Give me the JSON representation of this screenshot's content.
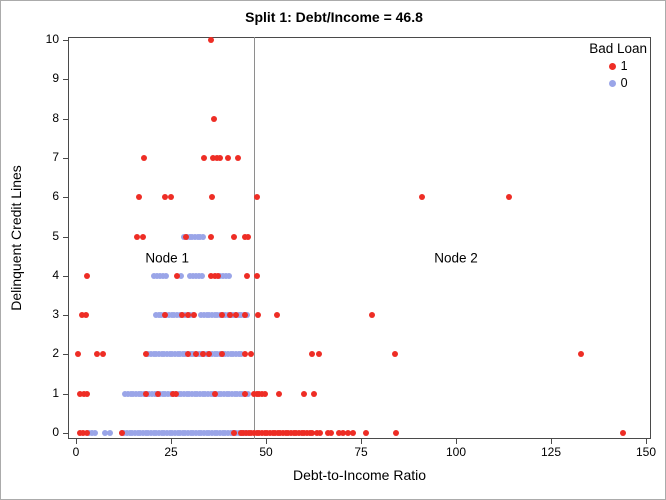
{
  "title": "Split 1: Debt/Income = 46.8",
  "axes": {
    "x": {
      "label": "Debt-to-Income Ratio",
      "min": 0,
      "max": 150,
      "ticks": [
        0,
        25,
        50,
        75,
        100,
        125,
        150
      ]
    },
    "y": {
      "label": "Delinquent Credit Lines",
      "min": 0,
      "max": 10,
      "ticks": [
        0,
        1,
        2,
        3,
        4,
        5,
        6,
        7,
        8,
        9,
        10
      ]
    }
  },
  "legend": {
    "title": "Bad Loan",
    "entries": [
      {
        "label": "1",
        "color": "#ee2d25"
      },
      {
        "label": "0",
        "color": "#9aa5e8"
      }
    ]
  },
  "colors": {
    "bad_loan_1": "#ee2d25",
    "bad_loan_0": "#9aa5e8",
    "reference_line": "#8e8e8e",
    "frame": "#4a4a4a"
  },
  "chart_data": {
    "type": "scatter",
    "title": "Split 1: Debt/Income = 46.8",
    "xlabel": "Debt-to-Income Ratio",
    "ylabel": "Delinquent Credit Lines",
    "xlim": [
      0,
      150
    ],
    "ylim": [
      0,
      10
    ],
    "grid": false,
    "legend_position": "top-right-inside",
    "reference_line_x": 46.8,
    "annotations": [
      {
        "text": "Node 1",
        "x": 24,
        "y": 4.45
      },
      {
        "text": "Node 2",
        "x": 100,
        "y": 4.45
      }
    ],
    "series": [
      {
        "name": "0",
        "legend_label": "0",
        "color": "#9aa5e8",
        "points": [
          [
            3.5,
            0
          ],
          [
            4.3,
            0
          ],
          [
            5.1,
            0
          ],
          [
            7.5,
            0
          ],
          [
            9,
            0
          ],
          [
            20.5,
            4
          ],
          [
            21.3,
            4
          ],
          [
            22.1,
            4
          ],
          [
            22.9,
            4
          ],
          [
            23.7,
            4
          ],
          [
            27.5,
            4
          ],
          [
            30,
            4
          ],
          [
            30.8,
            4
          ],
          [
            31.6,
            4
          ],
          [
            32.4,
            4
          ],
          [
            33.2,
            4
          ],
          [
            37.8,
            4
          ],
          [
            38.6,
            4
          ],
          [
            39.4,
            4
          ],
          [
            40.2,
            4
          ],
          [
            28.5,
            5
          ],
          [
            29.2,
            5
          ],
          [
            29.9,
            5
          ],
          [
            30.6,
            5
          ],
          [
            31.3,
            5
          ],
          [
            32,
            5
          ],
          [
            32.7,
            5
          ],
          [
            33.4,
            5
          ]
        ],
        "dense_bands": [
          {
            "y": 0,
            "x_from": 12,
            "x_to": 45.5,
            "step": 0.7
          },
          {
            "y": 1,
            "x_from": 13,
            "x_to": 45.5,
            "step": 0.7
          },
          {
            "y": 2,
            "x_from": 19,
            "x_to": 44,
            "step": 0.7
          },
          {
            "y": 3,
            "x_from": 21,
            "x_to": 31,
            "step": 0.7
          },
          {
            "y": 3,
            "x_from": 33,
            "x_to": 45,
            "step": 0.7
          }
        ]
      },
      {
        "name": "1",
        "legend_label": "1",
        "color": "#ee2d25",
        "points": [
          [
            1,
            0
          ],
          [
            1.9,
            0
          ],
          [
            2.9,
            0
          ],
          [
            12,
            0
          ],
          [
            41.5,
            0
          ],
          [
            43.5,
            0
          ],
          [
            63.3,
            0
          ],
          [
            64.3,
            0
          ],
          [
            66.3,
            0
          ],
          [
            67.1,
            0
          ],
          [
            69.2,
            0
          ],
          [
            70.3,
            0
          ],
          [
            71.6,
            0
          ],
          [
            72.9,
            0
          ],
          [
            76.3,
            0
          ],
          [
            84.2,
            0
          ],
          [
            144,
            0
          ],
          [
            1,
            1
          ],
          [
            2,
            1
          ],
          [
            3,
            1
          ],
          [
            18.5,
            1
          ],
          [
            21.5,
            1
          ],
          [
            25.5,
            1
          ],
          [
            26.3,
            1
          ],
          [
            36.5,
            1
          ],
          [
            44.5,
            1
          ],
          [
            46.8,
            1
          ],
          [
            47.5,
            1
          ],
          [
            48.2,
            1
          ],
          [
            48.9,
            1
          ],
          [
            49.6,
            1
          ],
          [
            53.5,
            1
          ],
          [
            60,
            1
          ],
          [
            62.5,
            1
          ],
          [
            0.5,
            2
          ],
          [
            5.5,
            2
          ],
          [
            7,
            2
          ],
          [
            18.5,
            2
          ],
          [
            29.5,
            2
          ],
          [
            31.5,
            2
          ],
          [
            33.5,
            2
          ],
          [
            35,
            2
          ],
          [
            38.5,
            2
          ],
          [
            44.5,
            2
          ],
          [
            46,
            2
          ],
          [
            62,
            2
          ],
          [
            64,
            2
          ],
          [
            84,
            2
          ],
          [
            133,
            2
          ],
          [
            1.5,
            3
          ],
          [
            2.5,
            3
          ],
          [
            23.5,
            3
          ],
          [
            28,
            3
          ],
          [
            29.5,
            3
          ],
          [
            31,
            3
          ],
          [
            38.5,
            3
          ],
          [
            40.5,
            3
          ],
          [
            42,
            3
          ],
          [
            44.5,
            3
          ],
          [
            48,
            3
          ],
          [
            53,
            3
          ],
          [
            78,
            3
          ],
          [
            3,
            4
          ],
          [
            26.5,
            4
          ],
          [
            35.5,
            4
          ],
          [
            36.5,
            4
          ],
          [
            37.3,
            4
          ],
          [
            45,
            4
          ],
          [
            47.5,
            4
          ],
          [
            16,
            5
          ],
          [
            17.5,
            5
          ],
          [
            29,
            5
          ],
          [
            35.5,
            5
          ],
          [
            41.5,
            5
          ],
          [
            44.5,
            5
          ],
          [
            45.3,
            5
          ],
          [
            16.5,
            6
          ],
          [
            23.3,
            6
          ],
          [
            25,
            6
          ],
          [
            35.7,
            6
          ],
          [
            47.5,
            6
          ],
          [
            91,
            6
          ],
          [
            114,
            6
          ],
          [
            17.8,
            7
          ],
          [
            33.7,
            7
          ],
          [
            36,
            7
          ],
          [
            37,
            7
          ],
          [
            38,
            7
          ],
          [
            40,
            7
          ],
          [
            42.5,
            7
          ],
          [
            36.3,
            8
          ],
          [
            35.5,
            10
          ]
        ],
        "dense_bands": [
          {
            "y": 0,
            "x_from": 44,
            "x_to": 62.5,
            "step": 0.7
          }
        ]
      }
    ]
  }
}
